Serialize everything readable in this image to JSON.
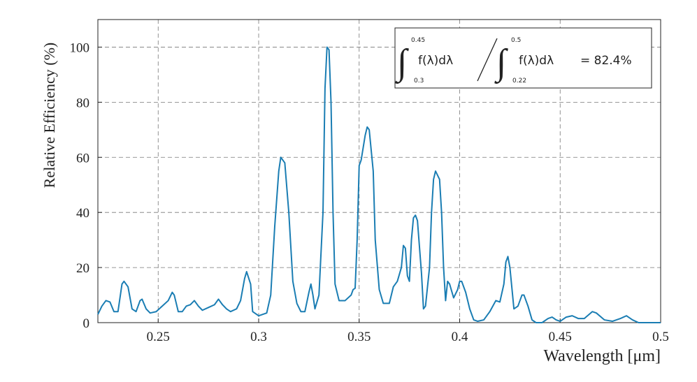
{
  "chart_data": {
    "type": "line",
    "x_label": "Wavelength [μm]",
    "y_label": "Relative Efficiency (%)",
    "xlim": [
      0.22,
      0.5
    ],
    "ylim": [
      0,
      110
    ],
    "xticks": [
      0.25,
      0.3,
      0.35,
      0.4,
      0.45,
      0.5
    ],
    "yticks": [
      0,
      20,
      40,
      60,
      80,
      100
    ],
    "grid": true,
    "annotation": {
      "numerator": {
        "upper": "0.45",
        "lower": "0.3",
        "integrand": "f(λ)dλ"
      },
      "denominator": {
        "upper": "0.5",
        "lower": "0.22",
        "integrand": "f(λ)dλ"
      },
      "result": "= 82.4%"
    },
    "series": [
      {
        "color": "#1a7db3",
        "x": [
          0.22,
          0.222,
          0.224,
          0.226,
          0.228,
          0.23,
          0.232,
          0.233,
          0.235,
          0.237,
          0.239,
          0.241,
          0.242,
          0.244,
          0.246,
          0.249,
          0.252,
          0.255,
          0.257,
          0.258,
          0.26,
          0.262,
          0.264,
          0.266,
          0.268,
          0.27,
          0.272,
          0.275,
          0.278,
          0.28,
          0.282,
          0.284,
          0.286,
          0.289,
          0.291,
          0.293,
          0.294,
          0.296,
          0.297,
          0.3,
          0.302,
          0.304,
          0.306,
          0.308,
          0.31,
          0.311,
          0.313,
          0.315,
          0.317,
          0.319,
          0.321,
          0.323,
          0.325,
          0.326,
          0.327,
          0.328,
          0.33,
          0.332,
          0.333,
          0.334,
          0.335,
          0.336,
          0.337,
          0.338,
          0.34,
          0.343,
          0.346,
          0.347,
          0.348,
          0.349,
          0.35,
          0.351,
          0.353,
          0.354,
          0.355,
          0.357,
          0.358,
          0.36,
          0.362,
          0.365,
          0.367,
          0.369,
          0.371,
          0.372,
          0.373,
          0.374,
          0.375,
          0.376,
          0.377,
          0.378,
          0.379,
          0.381,
          0.382,
          0.383,
          0.385,
          0.386,
          0.387,
          0.388,
          0.39,
          0.391,
          0.392,
          0.393,
          0.394,
          0.395,
          0.397,
          0.399,
          0.4,
          0.401,
          0.403,
          0.405,
          0.407,
          0.409,
          0.412,
          0.415,
          0.418,
          0.42,
          0.422,
          0.423,
          0.424,
          0.425,
          0.427,
          0.429,
          0.431,
          0.432,
          0.434,
          0.436,
          0.438,
          0.441,
          0.444,
          0.446,
          0.448,
          0.45,
          0.453,
          0.456,
          0.459,
          0.462,
          0.466,
          0.468,
          0.472,
          0.476,
          0.48,
          0.483,
          0.486,
          0.489,
          0.5
        ],
        "values": [
          3,
          6,
          8,
          7.5,
          4,
          4,
          14,
          15,
          13,
          5,
          4,
          8,
          8.5,
          5,
          3.5,
          4,
          6,
          8,
          11,
          10,
          4,
          4,
          6,
          6.5,
          8,
          6,
          4.5,
          5.5,
          6.5,
          8.5,
          6.5,
          5,
          4,
          5,
          8,
          16,
          18.5,
          14,
          4,
          2.5,
          3,
          3.5,
          10,
          35,
          55,
          60,
          58,
          40,
          15,
          7,
          4,
          4,
          11,
          14,
          10,
          5,
          10,
          40,
          85,
          100,
          99,
          80,
          40,
          14,
          8,
          8,
          10,
          12,
          12.5,
          30,
          57,
          59,
          68,
          71,
          70,
          55,
          30,
          12,
          7,
          7,
          13,
          15,
          20,
          28,
          27,
          17,
          15,
          30,
          38,
          39,
          37,
          18,
          5,
          6,
          20,
          40,
          52,
          55,
          52,
          40,
          20,
          8,
          15,
          14,
          9,
          12,
          15,
          15,
          11,
          5,
          1,
          0.5,
          1,
          4,
          8,
          7.5,
          14,
          22,
          24,
          20,
          5,
          6,
          10,
          10,
          6,
          1,
          0,
          0,
          1.5,
          2,
          1,
          0.5,
          2,
          2.5,
          1.5,
          1.5,
          4,
          3.5,
          1,
          0.5,
          1.5,
          2.5,
          1,
          0,
          0
        ]
      }
    ]
  }
}
